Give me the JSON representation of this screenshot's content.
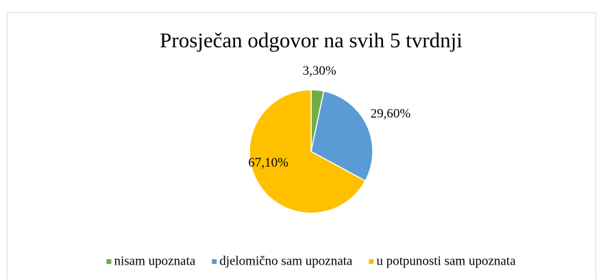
{
  "chart_data": {
    "type": "pie",
    "title": "Prosječan odgovor na svih 5 tvrdnji",
    "categories": [
      "nisam upoznata",
      "djelomično sam upoznata",
      "u potpunosti sam upoznata"
    ],
    "values": [
      3.3,
      29.6,
      67.1
    ],
    "value_labels": [
      "3,30%",
      "29,60%",
      "67,10%"
    ],
    "colors": [
      "#70ad47",
      "#5b9bd5",
      "#ffc000"
    ],
    "legend": "bottom"
  }
}
